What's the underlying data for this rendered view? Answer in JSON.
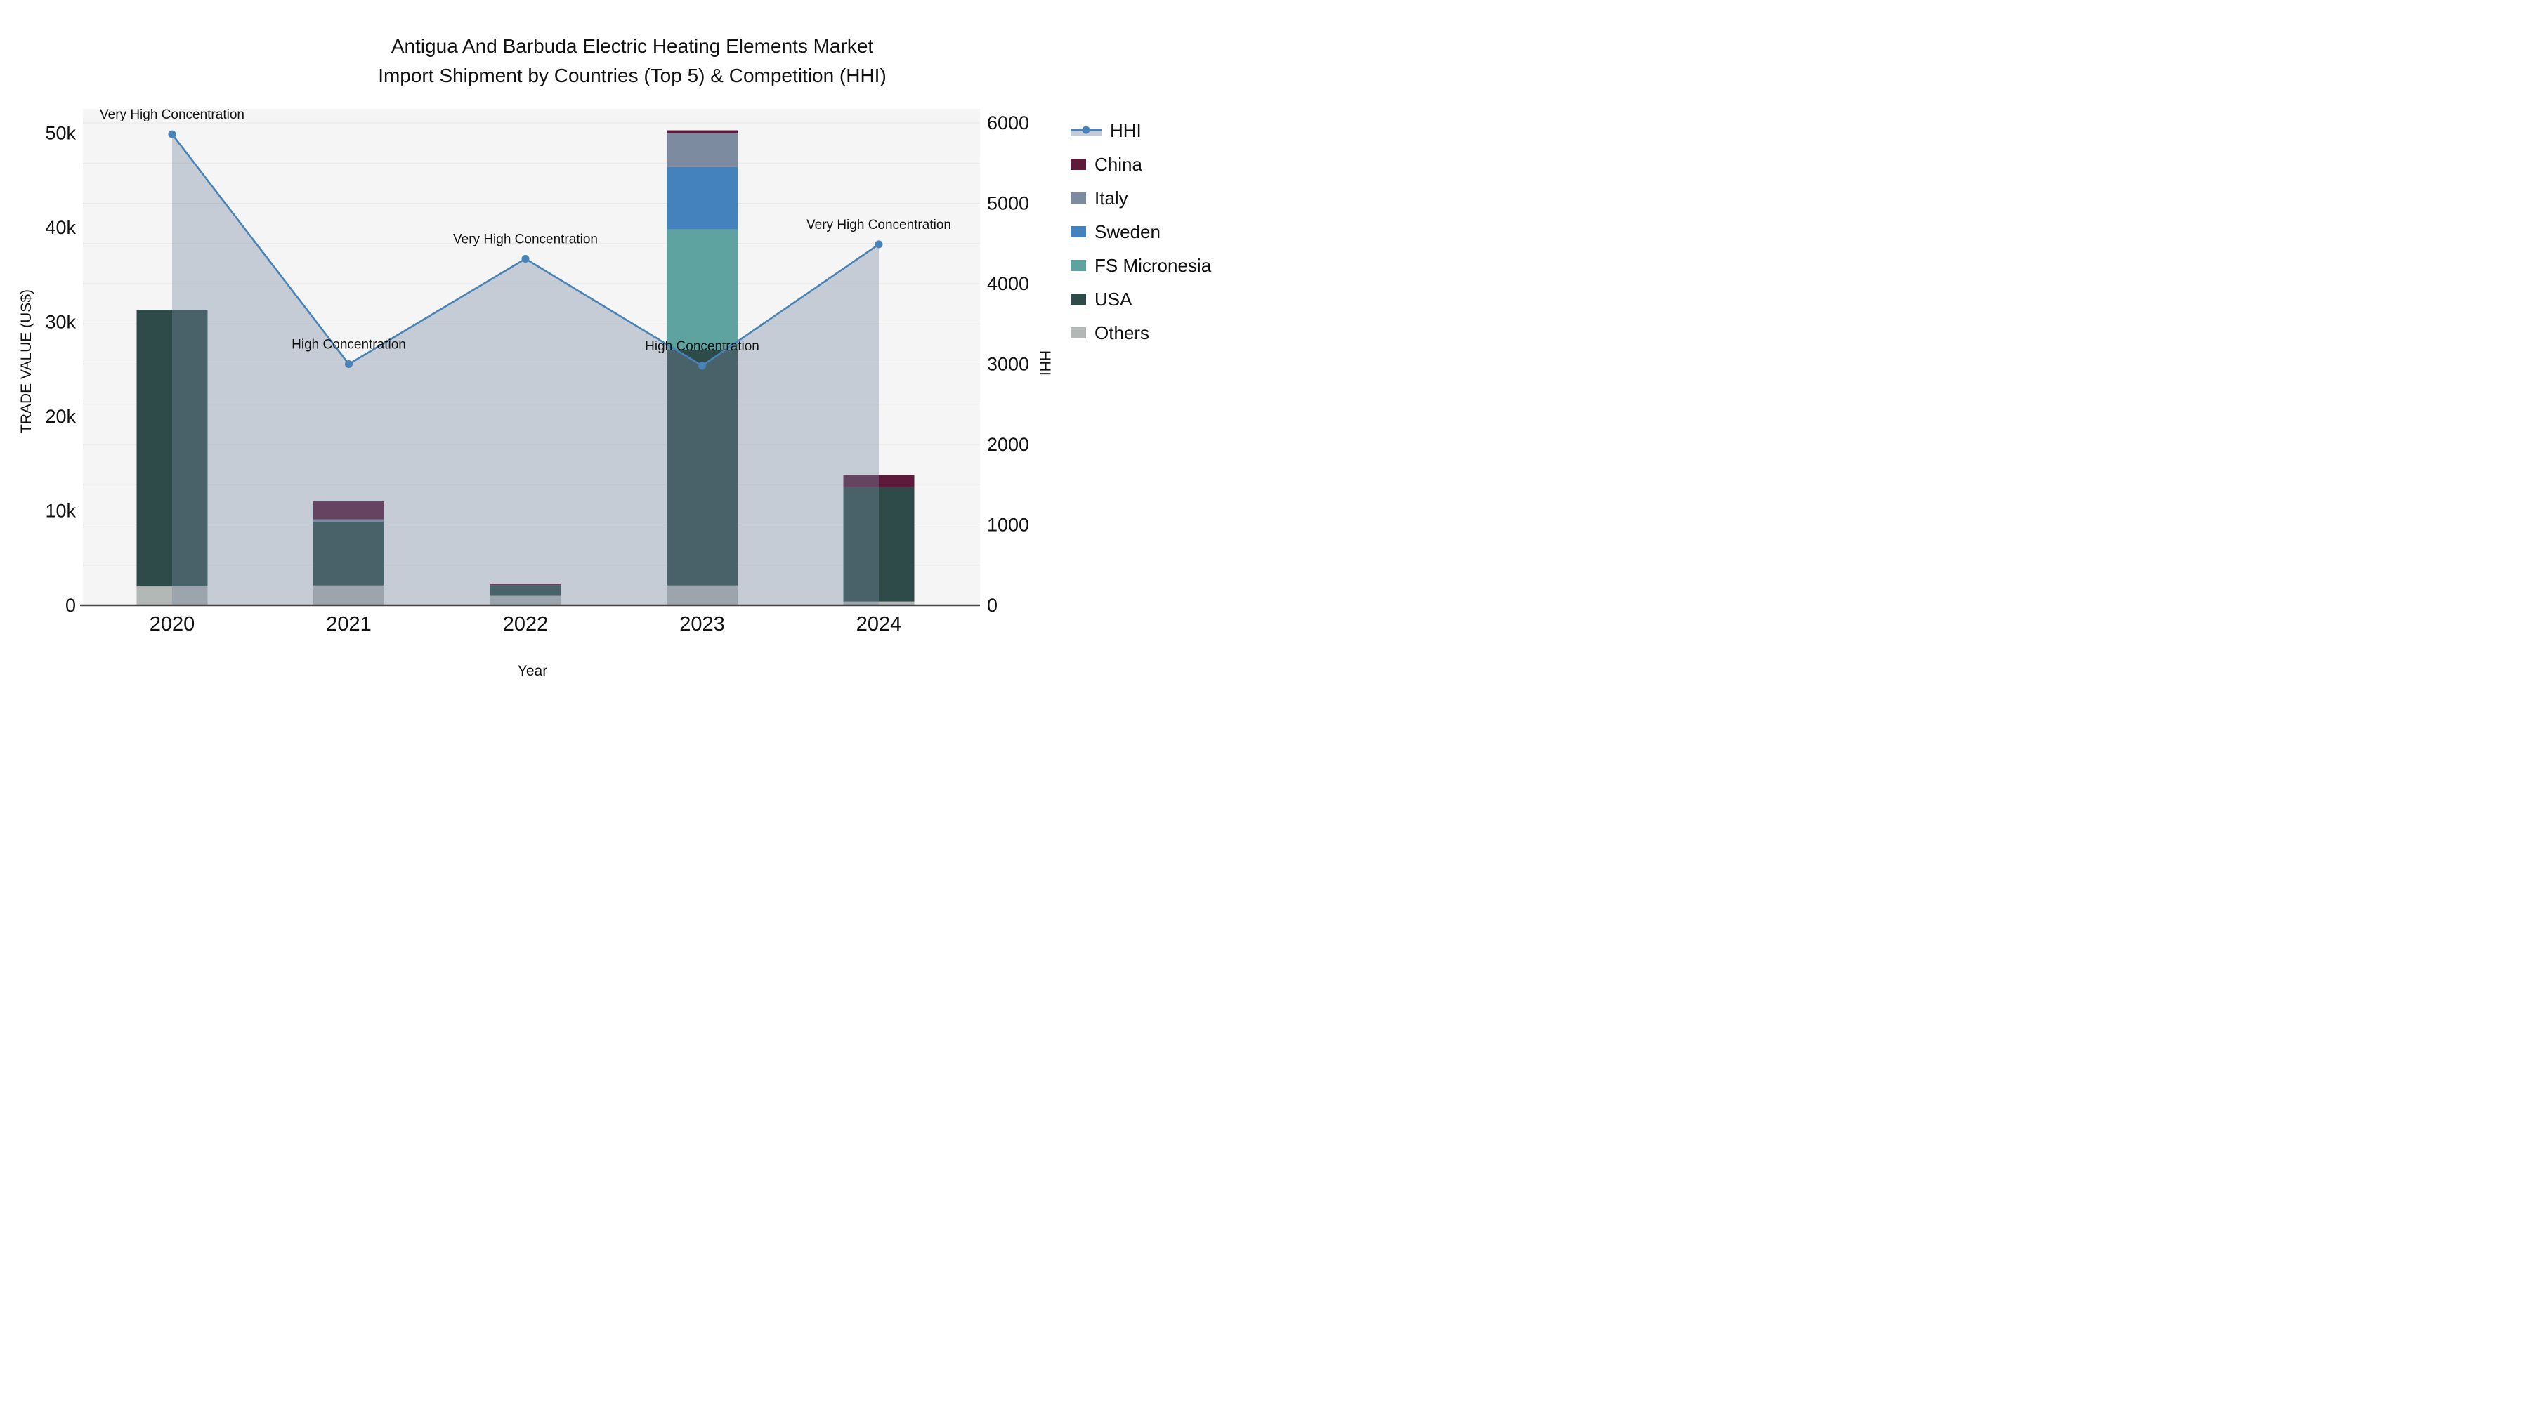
{
  "title": {
    "line1": "Antigua And Barbuda Electric Heating Elements Market",
    "line2": "Import Shipment by Countries (Top 5) & Competition (HHI)"
  },
  "axes_titles": {
    "y_left": "TRADE VALUE (US$)",
    "y_right": "HHI",
    "x": "Year"
  },
  "legend": {
    "items": [
      {
        "label": "HHI",
        "type": "line",
        "color": "#4783b8",
        "area_color": "#c5cbd6"
      },
      {
        "label": "China",
        "type": "box",
        "color": "#5d1a3a"
      },
      {
        "label": "Italy",
        "type": "box",
        "color": "#7d8ba0"
      },
      {
        "label": "Sweden",
        "type": "box",
        "color": "#4382bd"
      },
      {
        "label": "FS Micronesia",
        "type": "box",
        "color": "#5fa3a1"
      },
      {
        "label": "USA",
        "type": "box",
        "color": "#2e4b49"
      },
      {
        "label": "Others",
        "type": "box",
        "color": "#b3b7b6"
      }
    ]
  },
  "chart_data": {
    "type": "bar+line",
    "title": "Antigua And Barbuda Electric Heating Elements Market Import Shipment by Countries (Top 5) & Competition (HHI)",
    "xlabel": "Year",
    "ylabel_left": "TRADE VALUE (US$)",
    "ylabel_right": "HHI",
    "x": [
      "2020",
      "2021",
      "2022",
      "2023",
      "2024"
    ],
    "axes": {
      "left": {
        "max": 52570,
        "ticks": [
          {
            "v": 0,
            "label": "0"
          },
          {
            "v": 10000,
            "label": "10k"
          },
          {
            "v": 20000,
            "label": "20k"
          },
          {
            "v": 30000,
            "label": "30k"
          },
          {
            "v": 40000,
            "label": "40k"
          },
          {
            "v": 50000,
            "label": "50k"
          }
        ]
      },
      "right": {
        "max": 6175,
        "ticks": [
          {
            "v": 0,
            "label": "0"
          },
          {
            "v": 1000,
            "label": "1000"
          },
          {
            "v": 2000,
            "label": "2000"
          },
          {
            "v": 3000,
            "label": "3000"
          },
          {
            "v": 4000,
            "label": "4000"
          },
          {
            "v": 5000,
            "label": "5000"
          },
          {
            "v": 6000,
            "label": "6000"
          }
        ],
        "gridline_step": 500
      }
    },
    "series": [
      {
        "name": "Others",
        "color": "#b3b7b6",
        "values": [
          2000,
          2100,
          1000,
          2100,
          400
        ]
      },
      {
        "name": "USA",
        "color": "#2e4b49",
        "values": [
          29300,
          6700,
          1100,
          24900,
          12100
        ]
      },
      {
        "name": "FS Micronesia",
        "color": "#5fa3a1",
        "values": [
          0,
          0,
          0,
          12800,
          0
        ]
      },
      {
        "name": "Sweden",
        "color": "#4382bd",
        "values": [
          0,
          0,
          0,
          6600,
          0
        ]
      },
      {
        "name": "Italy",
        "color": "#7d8ba0",
        "values": [
          0,
          300,
          0,
          3600,
          0
        ]
      },
      {
        "name": "China",
        "color": "#5d1a3a",
        "values": [
          0,
          1900,
          200,
          300,
          1300
        ]
      }
    ],
    "line_series": {
      "name": "HHI",
      "color": "#4783b8",
      "area_fill": "rgba(119,136,160,0.38)",
      "values": [
        5860,
        3000,
        4310,
        2980,
        4490
      ]
    },
    "annotations": [
      {
        "x": "2020",
        "text": "Very High Concentration"
      },
      {
        "x": "2021",
        "text": "High Concentration"
      },
      {
        "x": "2022",
        "text": "Very High Concentration"
      },
      {
        "x": "2023",
        "text": "High Concentration"
      },
      {
        "x": "2024",
        "text": "Very High Concentration"
      }
    ],
    "layout_hints": {
      "plot_bg": "#f5f5f5",
      "grid": "on",
      "legend_position": "right"
    }
  }
}
